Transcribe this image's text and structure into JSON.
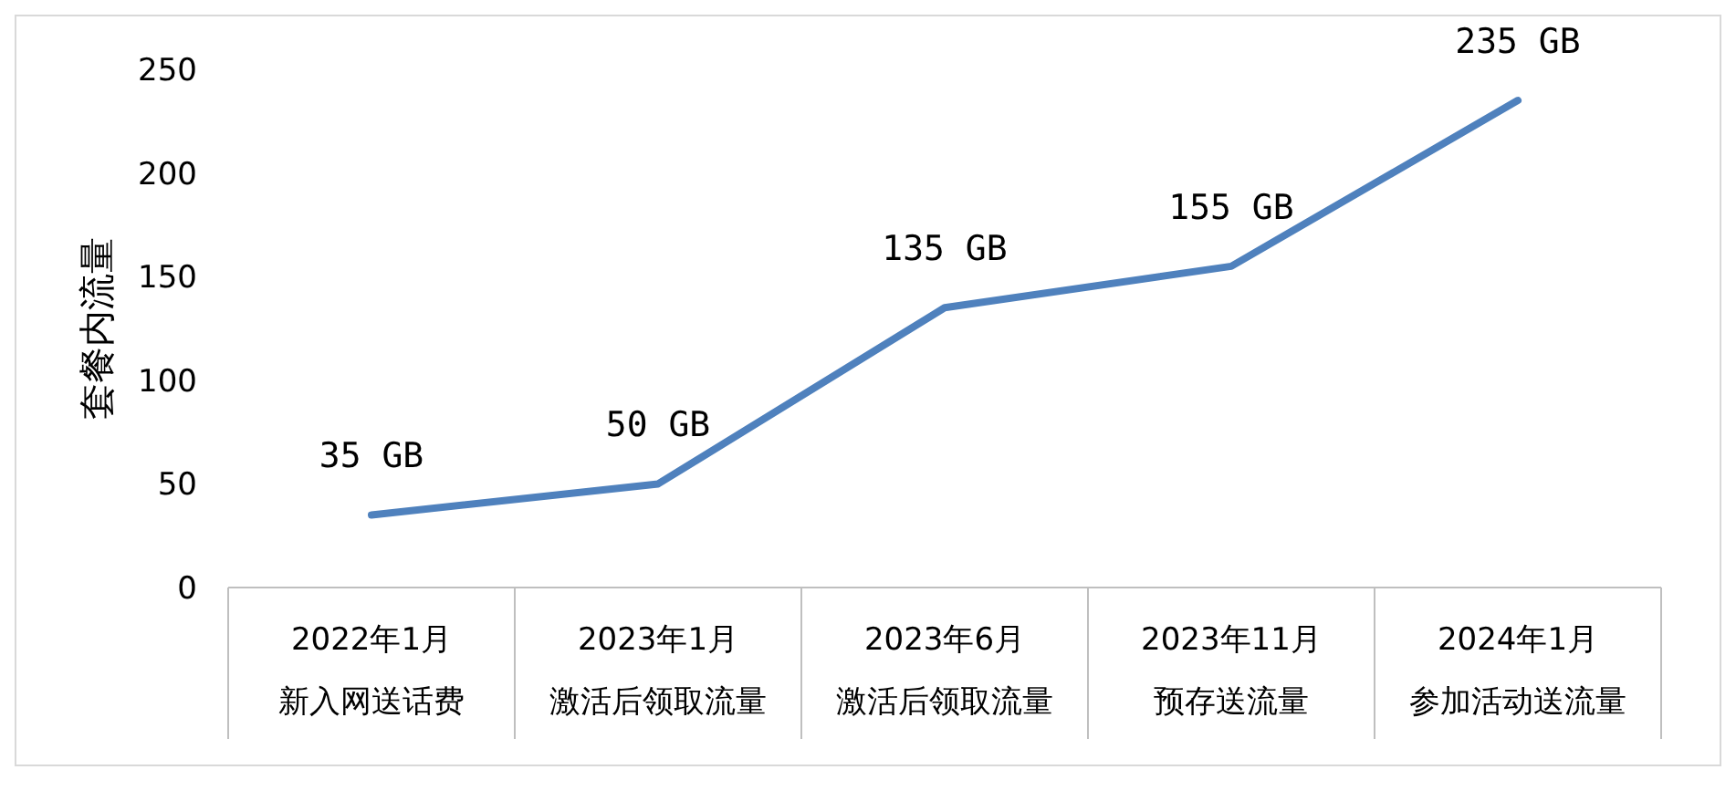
{
  "chart_data": {
    "type": "line",
    "ylabel": "套餐内流量",
    "categories": [
      "2022年1月新入网送话费",
      "2023年1月激活后领取流量",
      "2023年6月激活后领取流量",
      "2023年11月预存送流量",
      "2024年1月参加活动送流量"
    ],
    "series": [
      {
        "color": "#4f81bd",
        "values": [
          35,
          50,
          135,
          155,
          235
        ],
        "value_labels": [
          "35 GB",
          "50 GB",
          "135 GB",
          "155 GB",
          "235 GB"
        ]
      }
    ],
    "ylim": [
      0,
      250
    ],
    "yticks": [
      0,
      50,
      100,
      150,
      200,
      250
    ],
    "grid": false,
    "marker": "none",
    "line_style": "solid"
  }
}
